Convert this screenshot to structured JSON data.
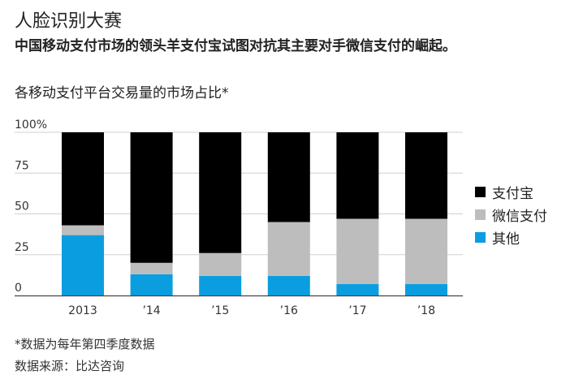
{
  "title": "人脸识别大赛",
  "subtitle": "中国移动支付市场的领头羊支付宝试图对抗其主要对手微信支付的崛起。",
  "chart_data": {
    "type": "bar",
    "stacked": true,
    "title": "各移动支付平台交易量的市场占比*",
    "categories": [
      "2013",
      "’14",
      "’15",
      "’16",
      "’17",
      "’18"
    ],
    "series": [
      {
        "name": "其他",
        "color": "#0a9ee0",
        "values": [
          37,
          13,
          12,
          12,
          7,
          7
        ]
      },
      {
        "name": "微信支付",
        "color": "#bdbdbd",
        "values": [
          6,
          7,
          14,
          33,
          40,
          40
        ]
      },
      {
        "name": "支付宝",
        "color": "#000000",
        "values": [
          57,
          80,
          74,
          55,
          53,
          53
        ]
      }
    ],
    "ylim": [
      0,
      100
    ],
    "yticks": [
      "0",
      "25",
      "50",
      "75",
      "100%"
    ],
    "ytick_values": [
      0,
      25,
      50,
      75,
      100
    ],
    "grid": true,
    "legend_position": "right"
  },
  "legend": [
    {
      "label": "支付宝",
      "color": "#000000"
    },
    {
      "label": "微信支付",
      "color": "#bdbdbd"
    },
    {
      "label": "其他",
      "color": "#0a9ee0"
    }
  ],
  "footnote": "*数据为每年第四季度数据",
  "source": "数据来源：比达咨询"
}
